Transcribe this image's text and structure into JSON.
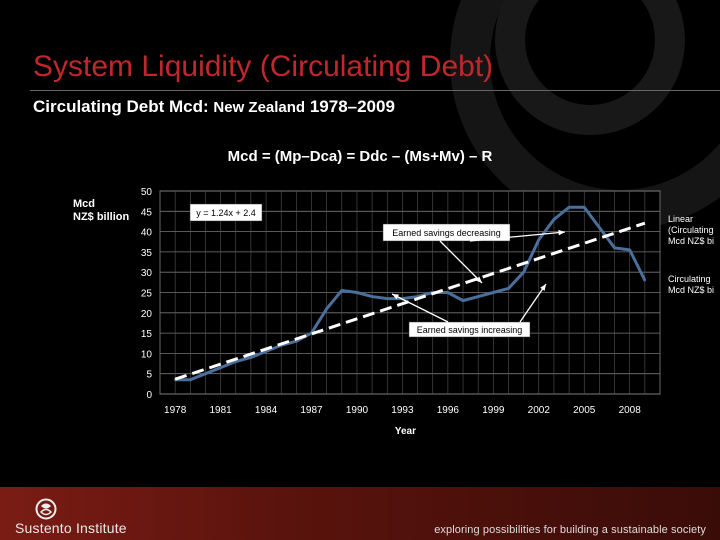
{
  "title": "System Liquidity (Circulating Debt)",
  "subtitle_main": "Circulating Debt Mcd: ",
  "subtitle_country": "New Zealand",
  "subtitle_years": " 1978–2009",
  "formula": "Mcd = (Mp–Dca) = Ddc – (Ms+Mv) – R",
  "y_title_line1": "Mcd",
  "y_title_line2": "NZ$ billion",
  "legend": {
    "linear_line1": "Linear",
    "linear_line2": "(Circulating",
    "linear_line3": "Mcd NZ$ bi",
    "series_line1": "Circulating",
    "series_line2": "Mcd NZ$ bi"
  },
  "footer": {
    "brand": "Sustento Institute",
    "tagline": "exploring possibilities for building a sustainable society"
  },
  "colors": {
    "title": "#c0272d",
    "series": "#4a6f9c",
    "trend": "#ffffff"
  },
  "chart_data": {
    "type": "line",
    "title": "Mcd = (Mp–Dca) = Ddc – (Ms+Mv) – R",
    "xlabel": "Year",
    "ylabel": "Mcd NZ$ billion",
    "ylim": [
      0,
      50
    ],
    "yticks": [
      0,
      5,
      10,
      15,
      20,
      25,
      30,
      35,
      40,
      45,
      50
    ],
    "xticks": [
      1978,
      1981,
      1984,
      1987,
      1990,
      1993,
      1996,
      1999,
      2002,
      2005,
      2008
    ],
    "grid": true,
    "series": [
      {
        "name": "Circulating Mcd NZ$ bi",
        "x": [
          1978,
          1979,
          1980,
          1981,
          1982,
          1983,
          1984,
          1985,
          1986,
          1987,
          1988,
          1989,
          1990,
          1991,
          1992,
          1993,
          1994,
          1995,
          1996,
          1997,
          1998,
          1999,
          2000,
          2001,
          2002,
          2003,
          2004,
          2005,
          2006,
          2007,
          2008,
          2009
        ],
        "values": [
          3.5,
          3.5,
          5,
          6.5,
          8,
          9,
          10.5,
          12,
          13,
          15,
          21,
          25.5,
          25,
          24,
          23.5,
          23.5,
          24,
          25,
          25,
          23,
          24,
          25,
          26,
          30,
          38,
          43,
          46,
          46,
          41,
          36,
          35.5,
          28
        ]
      },
      {
        "name": "Linear (Circulating Mcd NZ$ bi)",
        "equation": "y = 1.24x + 2.4",
        "x": [
          1978,
          2009
        ],
        "values": [
          3.64,
          42.08
        ]
      }
    ],
    "annotations": [
      {
        "text": "y = 1.24x + 2.4"
      },
      {
        "text": "Earned savings decreasing"
      },
      {
        "text": "Earned savings increasing"
      }
    ]
  }
}
